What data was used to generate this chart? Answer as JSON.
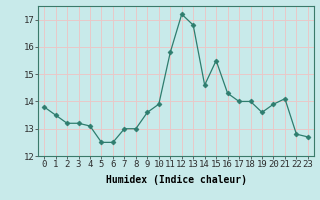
{
  "x": [
    0,
    1,
    2,
    3,
    4,
    5,
    6,
    7,
    8,
    9,
    10,
    11,
    12,
    13,
    14,
    15,
    16,
    17,
    18,
    19,
    20,
    21,
    22,
    23
  ],
  "y": [
    13.8,
    13.5,
    13.2,
    13.2,
    13.1,
    12.5,
    12.5,
    13.0,
    13.0,
    13.6,
    13.9,
    15.8,
    17.2,
    16.8,
    14.6,
    15.5,
    14.3,
    14.0,
    14.0,
    13.6,
    13.9,
    14.1,
    12.8,
    12.7
  ],
  "line_color": "#2e7d6e",
  "marker": "D",
  "marker_size": 2.5,
  "bg_color": "#c8eaea",
  "grid_color": "#e8c8c8",
  "xlabel": "Humidex (Indice chaleur)",
  "ylim": [
    12,
    17.5
  ],
  "xlim": [
    -0.5,
    23.5
  ],
  "yticks": [
    12,
    13,
    14,
    15,
    16,
    17
  ],
  "xtick_labels": [
    "0",
    "1",
    "2",
    "3",
    "4",
    "5",
    "6",
    "7",
    "8",
    "9",
    "10",
    "11",
    "12",
    "13",
    "14",
    "15",
    "16",
    "17",
    "18",
    "19",
    "20",
    "21",
    "22",
    "23"
  ],
  "label_fontsize": 7,
  "tick_fontsize": 6.5
}
